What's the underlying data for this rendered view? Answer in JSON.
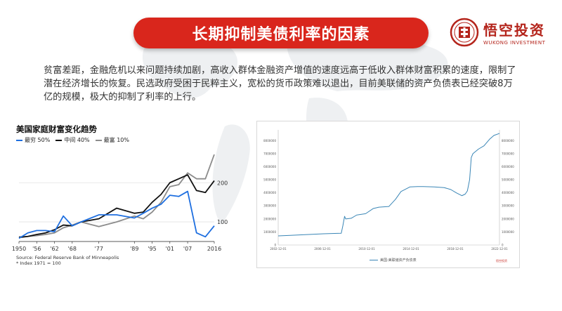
{
  "title": "长期抑制美债利率的因素",
  "logo": {
    "name_cn": "悟空投资",
    "name_en": "WUKONG INVESTMENT"
  },
  "body_text": "贫富差距，金融危机以来问题持续加剧，高收入群体金融资产增值的速度远高于低收入群体财富积累的速度，限制了潜在经济增长的恢复。民选政府受困于民粹主义，宽松的货币政策难以退出，目前美联储的资产负债表已经突破8万亿的规模，极大的抑制了利率的上行。",
  "colors": {
    "accent": "#d9261c",
    "poorest": "#1e6fe0",
    "middle": "#111111",
    "richest": "#8c8c8c",
    "fed": "#3a86b6"
  },
  "chart_data": [
    {
      "type": "line",
      "title": "美国家庭财富变化趋势",
      "categories": [
        "1950",
        "'56",
        "'62",
        "'68",
        "'77",
        "'89",
        "'95",
        "'01",
        "'07",
        "2016"
      ],
      "x": [
        1950,
        1953,
        1956,
        1959,
        1962,
        1965,
        1968,
        1971,
        1977,
        1983,
        1989,
        1992,
        1995,
        1998,
        2001,
        2004,
        2007,
        2010,
        2013,
        2016
      ],
      "series": [
        {
          "name": "最穷 50%",
          "values": [
            58,
            72,
            78,
            78,
            75,
            115,
            90,
            100,
            118,
            118,
            110,
            122,
            135,
            145,
            168,
            165,
            178,
            72,
            62,
            90
          ]
        },
        {
          "name": "中间 40%",
          "values": [
            60,
            63,
            68,
            72,
            80,
            92,
            90,
            100,
            108,
            135,
            122,
            125,
            150,
            170,
            200,
            210,
            220,
            180,
            175,
            205
          ]
        },
        {
          "name": "最富 10%",
          "values": [
            62,
            63,
            65,
            68,
            72,
            85,
            92,
            100,
            88,
            100,
            115,
            108,
            125,
            150,
            190,
            195,
            225,
            210,
            210,
            272
          ]
        }
      ],
      "yticks": [
        "100",
        "200"
      ],
      "ylim": [
        50,
        290
      ],
      "source": "Source: Federal Reserve Bank of Minneapolis",
      "note": "* Index 1971 = 100",
      "grid": true,
      "legend": "top-left"
    },
    {
      "type": "line",
      "xticks": [
        "2002-12-01",
        "2006-12-01",
        "2010-12-01",
        "2014-12-01",
        "2018-12-01",
        "2022-12-01"
      ],
      "y_left_ticks": [
        "0",
        "1000000",
        "2000000",
        "3000000",
        "4000000",
        "5000000",
        "6000000",
        "7000000",
        "8000000"
      ],
      "y_right_ticks": [
        "0",
        "1000000",
        "2000000",
        "3000000",
        "4000000",
        "5000000",
        "6000000",
        "7000000",
        "8000000"
      ],
      "ylim": [
        0,
        8500000
      ],
      "series": [
        {
          "name": "美联储资产负债表",
          "x": [
            2002.9,
            2004,
            2005,
            2006,
            2007,
            2008.0,
            2008.6,
            2008.75,
            2008.9,
            2009.0,
            2009.5,
            2010,
            2010.8,
            2011.5,
            2012,
            2012.9,
            2013.5,
            2014,
            2014.8,
            2015.5,
            2016,
            2017,
            2017.9,
            2018.5,
            2019,
            2019.5,
            2019.8,
            2020.0,
            2020.2,
            2020.35,
            2020.5,
            2021,
            2021.5,
            2022.0,
            2022.4,
            2022.9
          ],
          "values": [
            700000,
            740000,
            780000,
            820000,
            860000,
            890000,
            900000,
            1500000,
            2200000,
            2000000,
            2050000,
            2300000,
            2400000,
            2800000,
            2900000,
            2950000,
            3500000,
            4100000,
            4450000,
            4480000,
            4480000,
            4450000,
            4400000,
            4250000,
            4000000,
            3780000,
            3900000,
            4150000,
            5000000,
            6700000,
            7000000,
            7350000,
            7600000,
            8100000,
            8400000,
            8550000
          ]
        }
      ],
      "grid": false,
      "legend": "bottom-center",
      "legend_entries": [
        "美国:美联储资产负债表"
      ],
      "brand": "悟空投资"
    }
  ]
}
